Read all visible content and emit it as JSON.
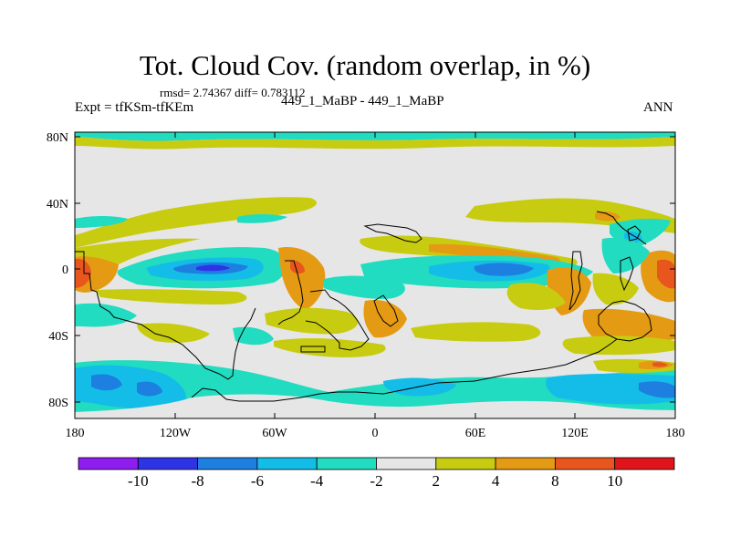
{
  "title": "Tot. Cloud Cov. (random overlap, in %)",
  "stats_text": "rmsd= 2.74367  diff= 0.783112",
  "expt_text": "Expt = tfKSm-tfKEm",
  "subtitle": "449_1_MaBP - 449_1_MaBP",
  "season": "ANN",
  "lat_ticks": [
    "80N",
    "40N",
    "0",
    "40S",
    "80S"
  ],
  "lon_ticks": [
    "180",
    "120W",
    "60W",
    "0",
    "60E",
    "120E",
    "180"
  ],
  "colorbar": {
    "labels": [
      "-10",
      "-8",
      "-6",
      "-4",
      "-2",
      "2",
      "4",
      "8",
      "10"
    ],
    "colors": [
      "#8f1cf0",
      "#2e34e6",
      "#1d7fe0",
      "#14bde8",
      "#21dcc0",
      "#e6e6e6",
      "#c8cc10",
      "#e59a14",
      "#e8561e",
      "#e0141a"
    ]
  },
  "colors": {
    "neutral": "#e6e6e6",
    "coast": "#000000"
  }
}
